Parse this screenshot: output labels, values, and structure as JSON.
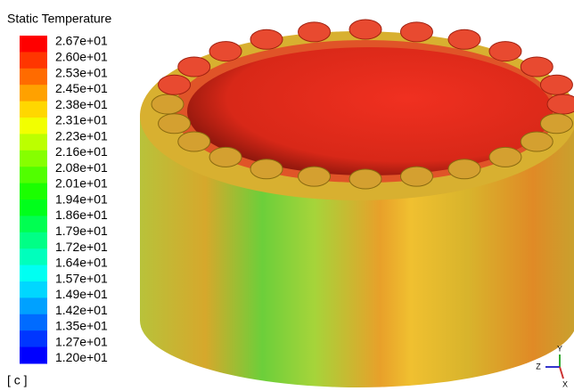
{
  "legend": {
    "title": "Static Temperature",
    "labels": [
      "2.67e+01",
      "2.60e+01",
      "2.53e+01",
      "2.45e+01",
      "2.38e+01",
      "2.31e+01",
      "2.23e+01",
      "2.16e+01",
      "2.08e+01",
      "2.01e+01",
      "1.94e+01",
      "1.86e+01",
      "1.79e+01",
      "1.72e+01",
      "1.64e+01",
      "1.57e+01",
      "1.49e+01",
      "1.42e+01",
      "1.35e+01",
      "1.27e+01",
      "1.20e+01"
    ],
    "unit": "[ c ]"
  },
  "triad": {
    "x": "X",
    "y": "Y",
    "z": "Z"
  }
}
